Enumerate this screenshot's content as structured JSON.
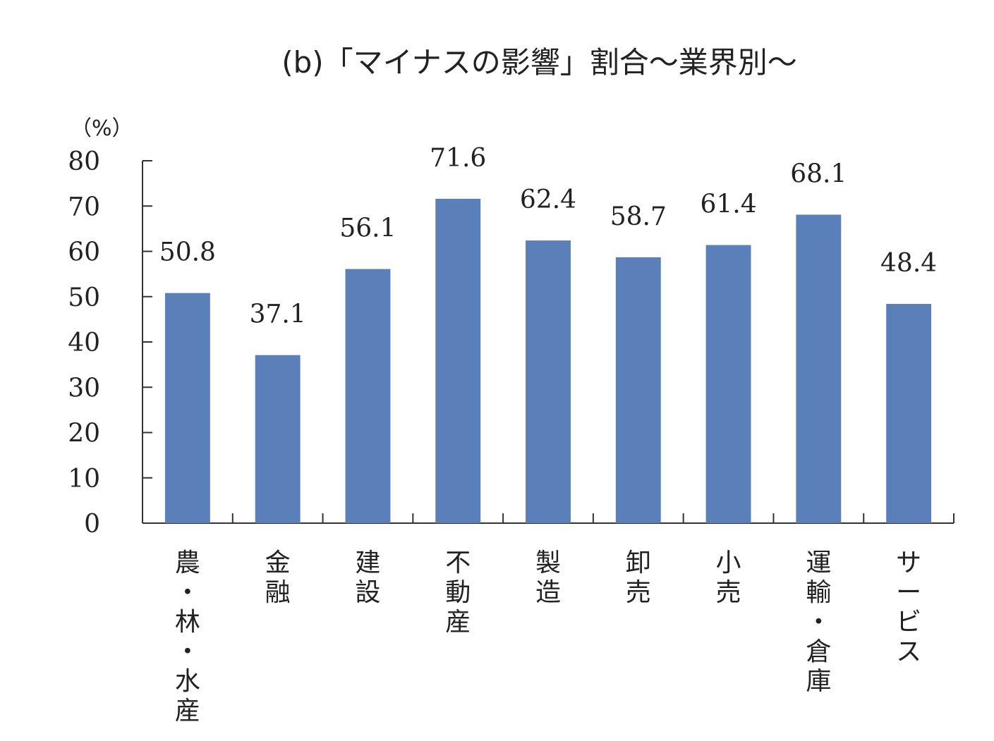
{
  "chart_data": {
    "type": "bar",
    "title": "(b)「マイナスの影響」割合～業界別～",
    "ylabel": "（%）",
    "xlabel": "",
    "ylim": [
      0,
      80
    ],
    "yticks": [
      0,
      10,
      20,
      30,
      40,
      50,
      60,
      70,
      80
    ],
    "grid": false,
    "categories": [
      "農・林・水産",
      "金融",
      "建設",
      "不動産",
      "製造",
      "卸売",
      "小売",
      "運輸・倉庫",
      "サービス"
    ],
    "values": [
      50.8,
      37.1,
      56.1,
      71.6,
      62.4,
      58.7,
      61.4,
      68.1,
      48.4
    ],
    "value_labels": [
      "50.8",
      "37.1",
      "56.1",
      "71.6",
      "62.4",
      "58.7",
      "61.4",
      "68.1",
      "48.4"
    ],
    "bar_color": "#5b7fb8"
  }
}
